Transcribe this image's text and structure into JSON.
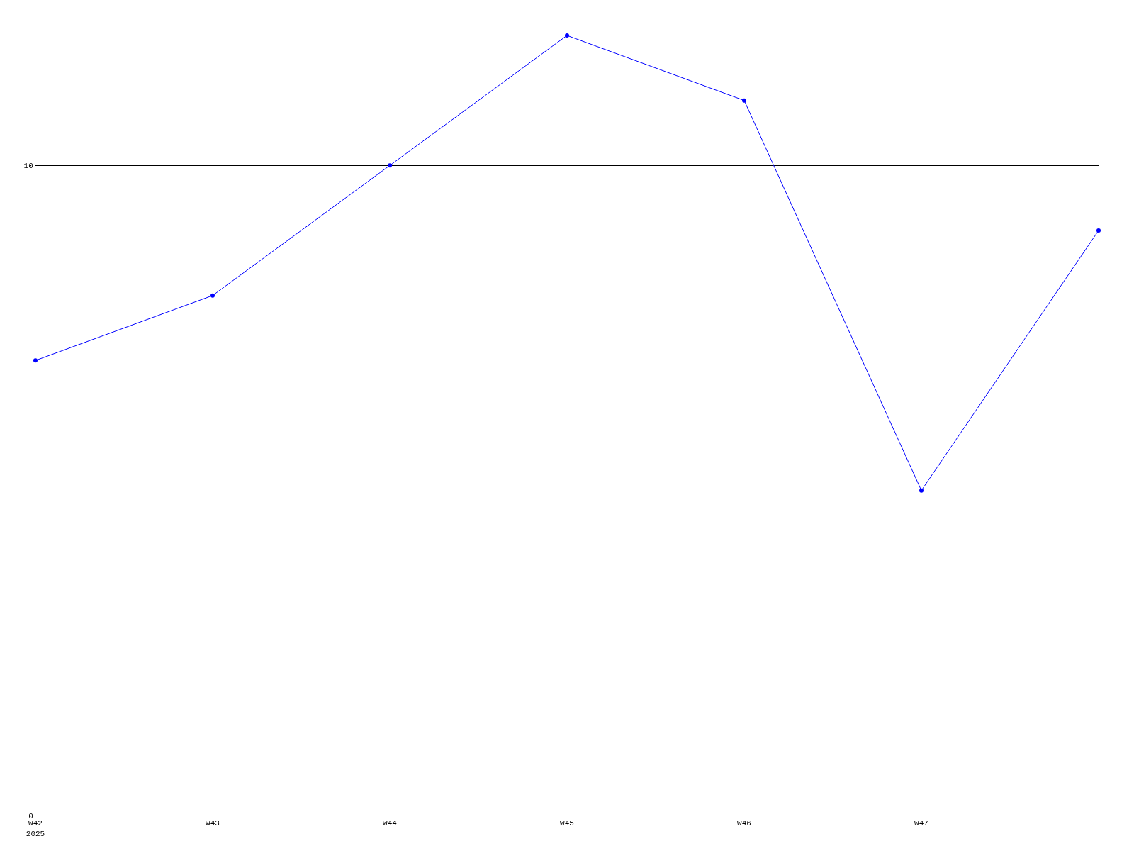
{
  "chart_data": {
    "type": "line",
    "categories": [
      "W42\n2025",
      "W43",
      "W44",
      "W45",
      "W46",
      "W47",
      null
    ],
    "series": [
      {
        "color": "#0000ff",
        "values": [
          7,
          8,
          10,
          12,
          11,
          5,
          9
        ]
      }
    ],
    "ylim": [
      0,
      12
    ],
    "yticks": [
      0,
      10
    ],
    "grid": "y",
    "marker": "circle",
    "line_style": "solid"
  }
}
